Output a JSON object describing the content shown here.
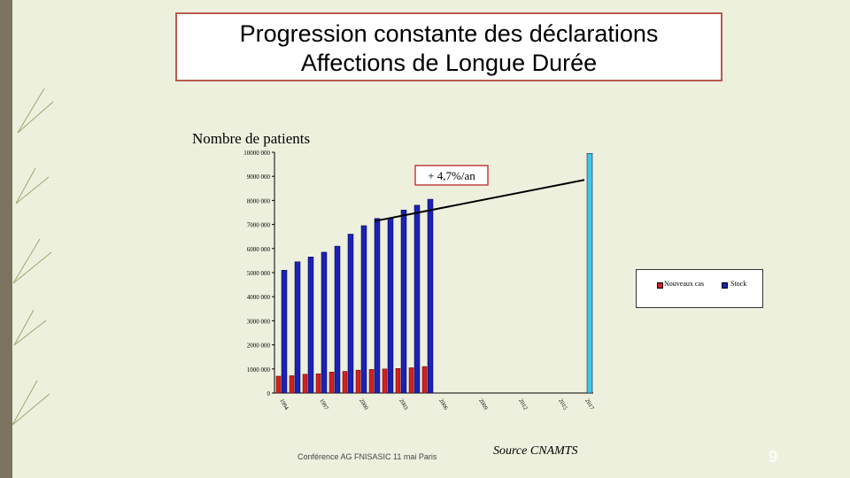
{
  "slide": {
    "title_line1": "Progression constante des déclarations",
    "title_line2": "Affections de Longue Durée",
    "footer": "Conférence AG FNISASIC 11 mai Paris",
    "source": "Source CNAMTS",
    "page_number": "9"
  },
  "colors": {
    "new_cases": "#d42020",
    "stock": "#1c22b4",
    "projection": "#3fc6ea",
    "background": "#eef0de"
  },
  "chart_data": {
    "type": "bar",
    "ylabel": "Nombre de patients",
    "ylim": [
      0,
      10000000
    ],
    "y_ticks": [
      "0",
      "1000 000",
      "2000 000",
      "3000 000",
      "4000 000",
      "5000 000",
      "6000 000",
      "7000 000",
      "8000 000",
      "9000 000",
      "10000 000"
    ],
    "x_tick_labels": [
      "1994",
      "1997",
      "2000",
      "2003",
      "2006",
      "2009",
      "2012",
      "2015",
      "2017"
    ],
    "categories": [
      "1994",
      "1995",
      "1996",
      "1997",
      "1998",
      "1999",
      "2000",
      "2001",
      "2002",
      "2003",
      "2004",
      "2005",
      "2006",
      "2007",
      "2008",
      "2009",
      "2010",
      "2011",
      "2012",
      "2013",
      "2014",
      "2015",
      "2016",
      "2017"
    ],
    "series": [
      {
        "name": "Nouveaux cas",
        "values": [
          700000,
          720000,
          780000,
          800000,
          870000,
          900000,
          950000,
          980000,
          1000000,
          1020000,
          1050000,
          1100000,
          null,
          null,
          null,
          null,
          null,
          null,
          null,
          null,
          null,
          null,
          null,
          null
        ]
      },
      {
        "name": "Stock",
        "values": [
          5100000,
          5450000,
          5650000,
          5850000,
          6100000,
          6600000,
          6950000,
          7250000,
          7250000,
          7600000,
          7800000,
          8050000,
          null,
          null,
          null,
          null,
          null,
          null,
          null,
          null,
          null,
          null,
          null,
          9950000
        ]
      }
    ],
    "annotation": "+ 4,7%/an",
    "legend": [
      "Nouveaux cas",
      "Stock"
    ],
    "legend_position": "right"
  }
}
